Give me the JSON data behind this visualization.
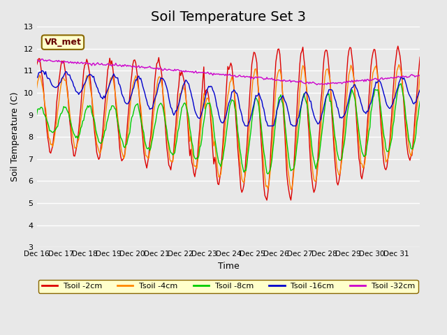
{
  "title": "Soil Temperature Set 3",
  "xlabel": "Time",
  "ylabel": "Soil Temperature (C)",
  "ylim": [
    3.0,
    13.0
  ],
  "yticks": [
    3.0,
    4.0,
    5.0,
    6.0,
    7.0,
    8.0,
    9.0,
    10.0,
    11.0,
    12.0,
    13.0
  ],
  "xtick_labels": [
    "Dec 16",
    "Dec 17",
    "Dec 18",
    "Dec 19",
    "Dec 20",
    "Dec 21",
    "Dec 22",
    "Dec 23",
    "Dec 24",
    "Dec 25",
    "Dec 26",
    "Dec 27",
    "Dec 28",
    "Dec 29",
    "Dec 30",
    "Dec 31"
  ],
  "series_colors": [
    "#dd0000",
    "#ff8800",
    "#00cc00",
    "#0000cc",
    "#cc00cc"
  ],
  "series_labels": [
    "Tsoil -2cm",
    "Tsoil -4cm",
    "Tsoil -8cm",
    "Tsoil -16cm",
    "Tsoil -32cm"
  ],
  "legend_box_color": "#ffffcc",
  "legend_box_edge": "#886600",
  "vr_met_box_color": "#ffffcc",
  "vr_met_box_edge": "#886600",
  "plot_background": "#e8e8e8",
  "grid_color": "#ffffff",
  "title_fontsize": 14
}
